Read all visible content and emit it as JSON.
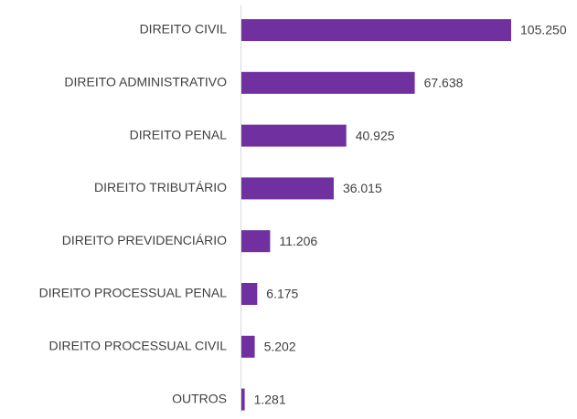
{
  "chart_data": {
    "type": "barh",
    "categories": [
      "DIREITO CIVIL",
      "DIREITO ADMINISTRATIVO",
      "DIREITO PENAL",
      "DIREITO TRIBUTÁRIO",
      "DIREITO PREVIDENCIÁRIO",
      "DIREITO PROCESSUAL PENAL",
      "DIREITO PROCESSUAL CIVIL",
      "OUTROS"
    ],
    "values": [
      105250,
      67638,
      40925,
      36015,
      11206,
      6175,
      5202,
      1281
    ],
    "value_labels": [
      "105.250",
      "67.638",
      "40.925",
      "36.015",
      "11.206",
      "6.175",
      "5.202",
      "1.281"
    ],
    "color": "#7030a0"
  }
}
